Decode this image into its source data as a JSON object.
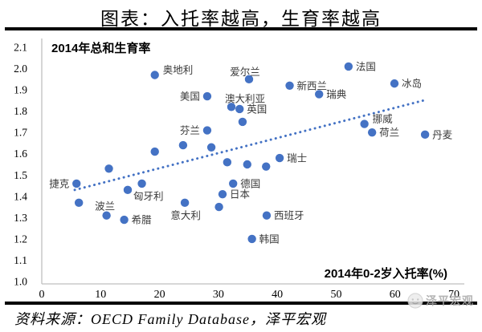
{
  "header": {
    "title": "图表：入托率越高，生育率越高"
  },
  "chart_data": {
    "type": "scatter",
    "title": "图表：入托率越高，生育率越高",
    "y_axis_title": "2014年总和生育率",
    "x_axis_title": "2014年0-2岁入托率(%)",
    "xlim": [
      0,
      72
    ],
    "ylim": [
      1.0,
      2.1
    ],
    "grid": false,
    "x_ticks": [
      "0",
      "10",
      "20",
      "30",
      "40",
      "50",
      "60",
      "70"
    ],
    "y_ticks": [
      "2.1",
      "2.0",
      "1.9",
      "1.8",
      "1.7",
      "1.6",
      "1.5",
      "1.4",
      "1.3",
      "1.2",
      "1.1",
      "1.0"
    ],
    "marker_color": "#4472C4",
    "trendline": {
      "style": "dotted",
      "color": "#4472C4",
      "x1": 5.6,
      "y1": 1.43,
      "x2": 64.8,
      "y2": 1.85
    },
    "points": [
      {
        "label": "捷克",
        "x": 5.9,
        "y": 1.46,
        "lp": "l"
      },
      {
        "label": "",
        "x": 6.3,
        "y": 1.37,
        "lp": ""
      },
      {
        "label": "",
        "x": 11.4,
        "y": 1.53,
        "lp": ""
      },
      {
        "label": "波兰",
        "x": 11.0,
        "y": 1.31,
        "lp": "al"
      },
      {
        "label": "希腊",
        "x": 14.0,
        "y": 1.29,
        "lp": "r"
      },
      {
        "label": "匈牙利",
        "x": 14.6,
        "y": 1.43,
        "lp": "rb"
      },
      {
        "label": "",
        "x": 17.0,
        "y": 1.46,
        "lp": ""
      },
      {
        "label": "奥地利",
        "x": 19.2,
        "y": 1.97,
        "lp": "ru"
      },
      {
        "label": "",
        "x": 19.2,
        "y": 1.61,
        "lp": ""
      },
      {
        "label": "",
        "x": 24.0,
        "y": 1.64,
        "lp": ""
      },
      {
        "label": "意大利",
        "x": 24.3,
        "y": 1.37,
        "lp": "bl"
      },
      {
        "label": "美国",
        "x": 28.1,
        "y": 1.87,
        "lp": "l"
      },
      {
        "label": "芬兰",
        "x": 28.1,
        "y": 1.71,
        "lp": "l"
      },
      {
        "label": "",
        "x": 28.8,
        "y": 1.63,
        "lp": ""
      },
      {
        "label": "",
        "x": 30.1,
        "y": 1.35,
        "lp": ""
      },
      {
        "label": "日本",
        "x": 30.7,
        "y": 1.41,
        "lp": "r"
      },
      {
        "label": "",
        "x": 31.5,
        "y": 1.56,
        "lp": ""
      },
      {
        "label": "澳大利亚",
        "x": 32.2,
        "y": 1.82,
        "lp": "ar"
      },
      {
        "label": "德国",
        "x": 32.5,
        "y": 1.46,
        "lp": "r"
      },
      {
        "label": "英国",
        "x": 33.6,
        "y": 1.81,
        "lp": "r"
      },
      {
        "label": "",
        "x": 34.1,
        "y": 1.75,
        "lp": ""
      },
      {
        "label": "",
        "x": 34.9,
        "y": 1.55,
        "lp": ""
      },
      {
        "label": "爱尔兰",
        "x": 35.2,
        "y": 1.95,
        "lp": "a"
      },
      {
        "label": "韩国",
        "x": 35.7,
        "y": 1.2,
        "lp": "r"
      },
      {
        "label": "",
        "x": 38.1,
        "y": 1.54,
        "lp": ""
      },
      {
        "label": "西班牙",
        "x": 38.2,
        "y": 1.31,
        "lp": "r"
      },
      {
        "label": "瑞士",
        "x": 40.4,
        "y": 1.58,
        "lp": "r"
      },
      {
        "label": "新西兰",
        "x": 42.1,
        "y": 1.92,
        "lp": "r"
      },
      {
        "label": "瑞典",
        "x": 47.1,
        "y": 1.88,
        "lp": "r"
      },
      {
        "label": "法国",
        "x": 52.1,
        "y": 2.01,
        "lp": "r"
      },
      {
        "label": "挪威",
        "x": 54.8,
        "y": 1.74,
        "lp": "ru"
      },
      {
        "label": "荷兰",
        "x": 56.1,
        "y": 1.7,
        "lp": "r"
      },
      {
        "label": "冰岛",
        "x": 59.9,
        "y": 1.93,
        "lp": "r"
      },
      {
        "label": "丹麦",
        "x": 65.1,
        "y": 1.69,
        "lp": "r"
      }
    ]
  },
  "footer": {
    "source": "资料来源：OECD Family Database，泽平宏观",
    "watermark": "泽平宏观"
  },
  "colors": {
    "marker": "#4472C4",
    "axis_line": "#bfbfbf",
    "label_text": "#3a3a3a",
    "watermark_gray": "#a8a8a8"
  }
}
